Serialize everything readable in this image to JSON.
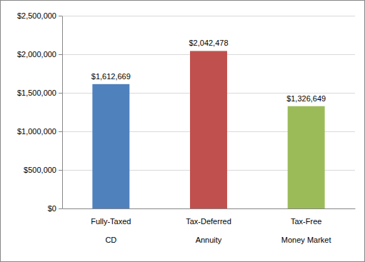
{
  "chart_data": {
    "type": "bar",
    "categories": [
      "Fully-Taxed\nCD",
      "Tax-Deferred\nAnnuity",
      "Tax-Free\nMoney Market"
    ],
    "values": [
      1612669,
      2042478,
      1326649
    ],
    "value_labels": [
      "$1,612,669",
      "$2,042,478",
      "$1,326,649"
    ],
    "colors": [
      "#4f81bd",
      "#c0504d",
      "#9bbb59"
    ],
    "ylim": [
      0,
      2500000
    ],
    "yticks": [
      {
        "value": 0,
        "label": "$0"
      },
      {
        "value": 500000,
        "label": "$500,000"
      },
      {
        "value": 1000000,
        "label": "$1,000,000"
      },
      {
        "value": 1500000,
        "label": "$1,500,000"
      },
      {
        "value": 2000000,
        "label": "$2,000,000"
      },
      {
        "value": 2500000,
        "label": "$2,500,000"
      }
    ],
    "grid": true,
    "data_labels": true
  }
}
